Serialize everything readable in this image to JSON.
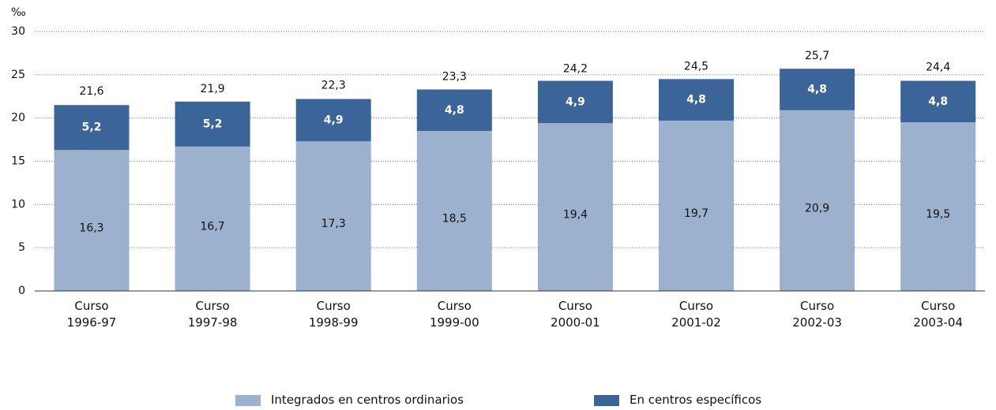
{
  "chart_data": {
    "type": "stacked_bar",
    "y_label": "‰",
    "categories": [
      "Curso 1996-97",
      "Curso 1997-98",
      "Curso 1998-99",
      "Curso 1999-00",
      "Curso 2000-01",
      "Curso 2001-02",
      "Curso 2002-03",
      "Curso 2003-04"
    ],
    "series": [
      {
        "name": "Integrados en centros ordinarios",
        "color": "#9bb1ce",
        "values": [
          16.3,
          16.7,
          17.3,
          18.5,
          19.4,
          19.7,
          20.9,
          19.5
        ],
        "value_labels": [
          "16,3",
          "16,7",
          "17,3",
          "18,5",
          "19,4",
          "19,7",
          "20,9",
          "19,5"
        ]
      },
      {
        "name": "En centros específicos",
        "color": "#3b6499",
        "values": [
          5.2,
          5.2,
          4.9,
          4.8,
          4.9,
          4.8,
          4.8,
          4.8
        ],
        "value_labels": [
          "5,2",
          "5,2",
          "4,9",
          "4,8",
          "4,9",
          "4,8",
          "4,8",
          "4,8"
        ]
      }
    ],
    "totals": [
      21.6,
      21.9,
      22.3,
      23.3,
      24.2,
      24.5,
      25.7,
      24.4
    ],
    "total_labels": [
      "21,6",
      "21,9",
      "22,3",
      "23,3",
      "24,2",
      "24,5",
      "25,7",
      "24,4"
    ],
    "ylim": [
      0,
      30
    ],
    "yticks": [
      0,
      5,
      10,
      15,
      20,
      25,
      30
    ],
    "grid": true
  }
}
